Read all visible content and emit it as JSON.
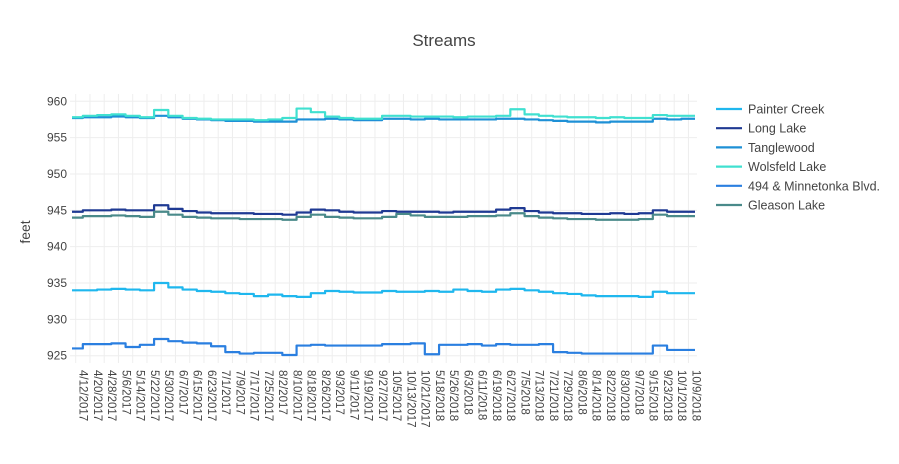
{
  "chart_data": {
    "type": "line",
    "title": "Streams",
    "xlabel": "",
    "ylabel": "feet",
    "ylim": [
      924,
      961
    ],
    "yticks": [
      925,
      930,
      935,
      940,
      945,
      950,
      955,
      960
    ],
    "grid": true,
    "legend_position": "right",
    "categories": [
      "4/12/2017",
      "4/20/2017",
      "4/28/2017",
      "5/6/2017",
      "5/14/2017",
      "5/22/2017",
      "5/30/2017",
      "6/7/2017",
      "6/15/2017",
      "6/23/2017",
      "7/1/2017",
      "7/9/2017",
      "7/17/2017",
      "7/25/2017",
      "8/2/2017",
      "8/10/2017",
      "8/18/2017",
      "8/26/2017",
      "9/3/2017",
      "9/11/2017",
      "9/19/2017",
      "9/27/2017",
      "10/5/2017",
      "10/13/2017",
      "10/21/2017",
      "5/18/2018",
      "5/26/2018",
      "6/3/2018",
      "6/11/2018",
      "6/19/2018",
      "6/27/2018",
      "7/5/2018",
      "7/13/2018",
      "7/21/2018",
      "7/29/2018",
      "8/6/2018",
      "8/14/2018",
      "8/22/2018",
      "8/30/2018",
      "9/7/2018",
      "9/15/2018",
      "9/23/2018",
      "10/1/2018",
      "10/9/2018"
    ],
    "series": [
      {
        "name": "Painter Creek",
        "color": "#1fb7ee",
        "values": [
          934.0,
          934.0,
          934.1,
          934.2,
          934.1,
          934.0,
          935.0,
          934.4,
          934.1,
          933.9,
          933.8,
          933.6,
          933.5,
          933.2,
          933.4,
          933.2,
          933.1,
          933.6,
          933.9,
          933.8,
          933.7,
          933.7,
          933.9,
          933.8,
          933.8,
          933.9,
          933.8,
          934.1,
          933.9,
          933.8,
          934.1,
          934.2,
          934.0,
          933.8,
          933.6,
          933.5,
          933.3,
          933.2,
          933.2,
          933.2,
          933.1,
          933.8,
          933.6,
          933.6
        ]
      },
      {
        "name": "Long Lake",
        "color": "#1f3a93",
        "values": [
          944.8,
          945.0,
          945.0,
          945.1,
          945.0,
          945.0,
          945.7,
          945.2,
          944.9,
          944.7,
          944.6,
          944.6,
          944.6,
          944.5,
          944.5,
          944.4,
          944.7,
          945.1,
          945.0,
          944.8,
          944.7,
          944.7,
          944.9,
          944.8,
          944.8,
          944.8,
          944.7,
          944.8,
          944.8,
          944.8,
          945.1,
          945.3,
          944.9,
          944.7,
          944.6,
          944.6,
          944.5,
          944.5,
          944.6,
          944.5,
          944.6,
          945.0,
          944.8,
          944.8
        ]
      },
      {
        "name": "Tanglewood",
        "color": "#1e90d6",
        "values": [
          957.7,
          957.8,
          957.8,
          957.9,
          957.8,
          957.7,
          958.0,
          957.8,
          957.6,
          957.5,
          957.4,
          957.3,
          957.3,
          957.2,
          957.2,
          957.2,
          957.5,
          957.5,
          957.6,
          957.5,
          957.4,
          957.4,
          957.6,
          957.6,
          957.5,
          957.6,
          957.5,
          957.5,
          957.5,
          957.5,
          957.6,
          957.6,
          957.5,
          957.4,
          957.3,
          957.2,
          957.2,
          957.1,
          957.2,
          957.2,
          957.2,
          957.6,
          957.5,
          957.6
        ]
      },
      {
        "name": "Wolsfeld Lake",
        "color": "#40e0d0",
        "values": [
          957.8,
          958.0,
          958.1,
          958.2,
          958.0,
          957.8,
          958.8,
          958.0,
          957.7,
          957.6,
          957.5,
          957.5,
          957.5,
          957.4,
          957.5,
          957.7,
          959.0,
          958.5,
          957.9,
          957.7,
          957.6,
          957.6,
          958.0,
          958.0,
          957.9,
          957.9,
          957.9,
          957.8,
          957.9,
          957.9,
          958.0,
          958.9,
          958.2,
          958.0,
          957.9,
          957.8,
          957.8,
          957.7,
          957.8,
          957.7,
          957.7,
          958.1,
          958.0,
          958.0
        ]
      },
      {
        "name": "494 & Minnetonka Blvd.",
        "color": "#2a7fe0",
        "values": [
          926.0,
          926.6,
          926.6,
          926.7,
          926.2,
          926.5,
          927.3,
          927.0,
          926.8,
          926.7,
          926.3,
          925.5,
          925.3,
          925.4,
          925.4,
          925.1,
          926.4,
          926.5,
          926.4,
          926.4,
          926.4,
          926.4,
          926.6,
          926.6,
          926.7,
          925.2,
          926.5,
          926.5,
          926.6,
          926.4,
          926.6,
          926.5,
          926.5,
          926.6,
          925.5,
          925.4,
          925.3,
          925.3,
          925.3,
          925.3,
          925.3,
          926.4,
          925.8,
          925.8
        ]
      },
      {
        "name": "Gleason Lake",
        "color": "#4a8a8a",
        "values": [
          944.0,
          944.2,
          944.2,
          944.3,
          944.2,
          944.1,
          944.8,
          944.4,
          944.1,
          944.0,
          943.9,
          943.9,
          943.8,
          943.8,
          943.8,
          943.7,
          944.1,
          944.4,
          944.1,
          944.0,
          943.9,
          943.9,
          944.1,
          944.5,
          944.3,
          944.1,
          944.1,
          944.1,
          944.2,
          944.2,
          944.3,
          944.6,
          944.2,
          944.0,
          943.9,
          943.8,
          943.8,
          943.7,
          943.7,
          943.7,
          943.8,
          944.4,
          944.2,
          944.2
        ]
      }
    ]
  }
}
